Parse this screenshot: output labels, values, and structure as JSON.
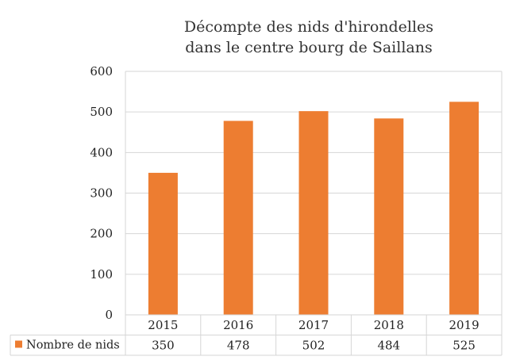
{
  "chart_data": {
    "type": "bar",
    "title": "Décompte des nids d'hirondelles dans le centre bourg de Saillans",
    "title_lines": [
      "Décompte des nids d'hirondelles",
      "dans le centre bourg de Saillans"
    ],
    "categories": [
      "2015",
      "2016",
      "2017",
      "2018",
      "2019"
    ],
    "series": [
      {
        "name": "Nombre de nids",
        "values": [
          350,
          478,
          502,
          484,
          525
        ],
        "color": "#ED7D31"
      }
    ],
    "y_ticks": [
      "0",
      "100",
      "200",
      "300",
      "400",
      "500",
      "600"
    ],
    "ylim": [
      0,
      600
    ],
    "grid": true,
    "data_table": true,
    "legend_placement": "data-table-left"
  }
}
